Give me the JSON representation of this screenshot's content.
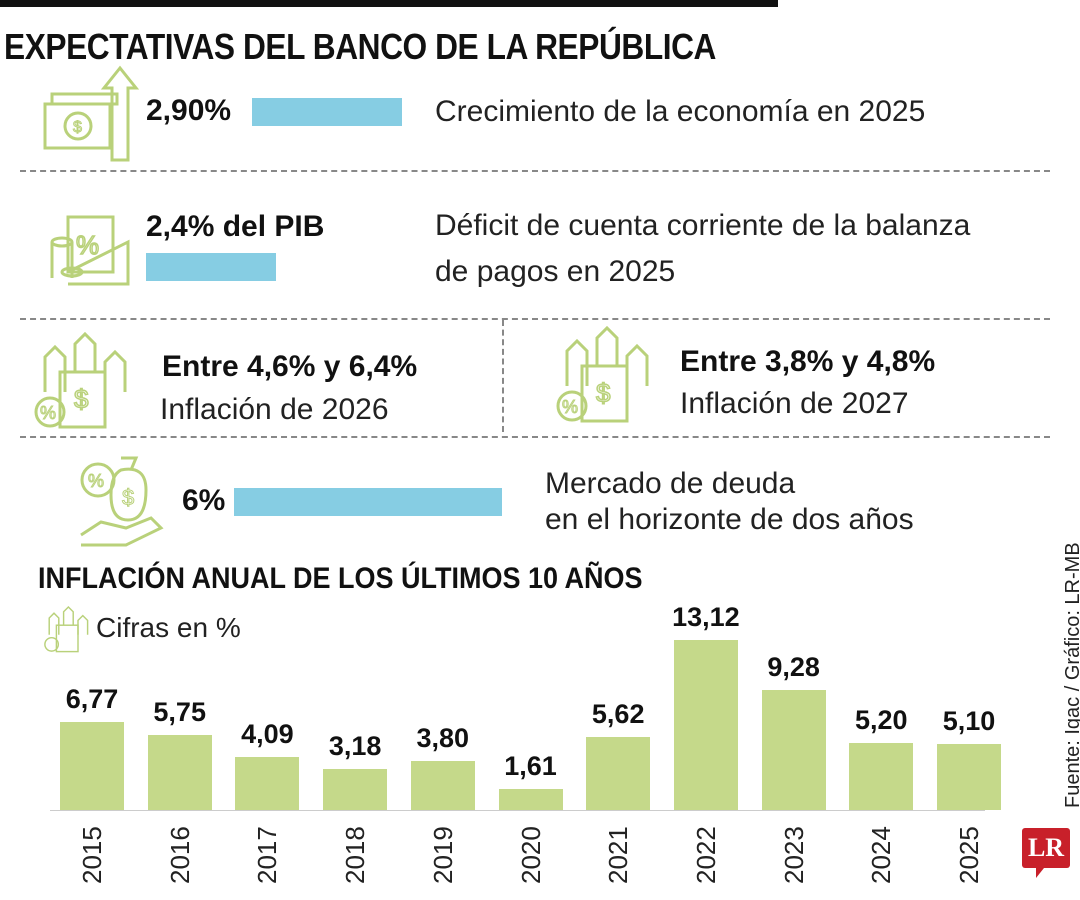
{
  "title": "EXPECTATIVAS DEL BANCO DE LA REPÚBLICA",
  "items": [
    {
      "value": "2,90%",
      "description": "Crecimiento de la economía en 2025",
      "icon": "money-growth-icon"
    },
    {
      "value": "2,4% del PIB",
      "description_line1": "Déficit de cuenta corriente de la balanza",
      "description_line2": "de pagos en 2025",
      "icon": "coins-envelope-icon"
    },
    {
      "value": "Entre 4,6% y 6,4%",
      "description": "Inflación de 2026",
      "icon": "inflation-icon"
    },
    {
      "value": "Entre 3,8% y 4,8%",
      "description": "Inflación de 2027",
      "icon": "inflation-icon"
    },
    {
      "value": "6%",
      "description_line1": "Mercado de deuda",
      "description_line2": "en el horizonte de dos años",
      "icon": "money-bag-hand-icon"
    }
  ],
  "colors": {
    "bar": "#c5d98a",
    "highlight": "#86cde3",
    "icon": "#b9d17a",
    "logo": "#c8202a"
  },
  "source": "Fuente: Igac / Gráfico: LR-MB",
  "logo": "LR",
  "chart_data": {
    "type": "bar",
    "title": "INFLACIÓN ANUAL DE LOS ÚLTIMOS 10 AÑOS",
    "subtitle": "Cifras en %",
    "categories": [
      "2015",
      "2016",
      "2017",
      "2018",
      "2019",
      "2020",
      "2021",
      "2022",
      "2023",
      "2024",
      "2025"
    ],
    "values": [
      6.77,
      5.75,
      4.09,
      3.18,
      3.8,
      1.61,
      5.62,
      13.12,
      9.28,
      5.2,
      5.1
    ],
    "labels": [
      "6,77",
      "5,75",
      "4,09",
      "3,18",
      "3,80",
      "1,61",
      "5,62",
      "13,12",
      "9,28",
      "5,20",
      "5,10"
    ],
    "ylim": [
      0,
      14
    ],
    "grid": false
  }
}
